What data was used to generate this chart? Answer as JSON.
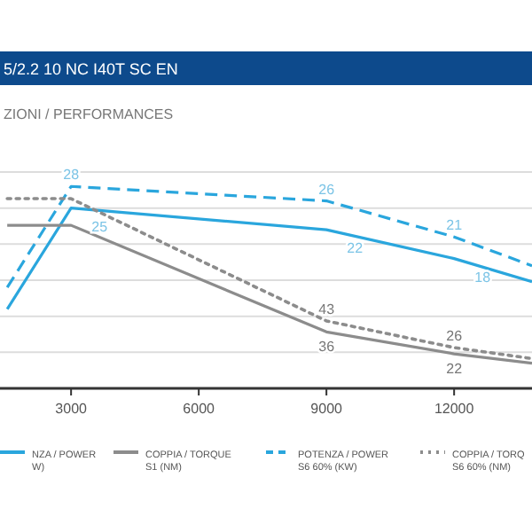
{
  "chart_data": {
    "type": "line",
    "title": "5/2.2 10 NC I40T SC EN",
    "subtitle": "ZIONI / PERFORMANCES",
    "x": [
      1500,
      3000,
      9000,
      12000,
      13830
    ],
    "xlim": [
      1330,
      13830
    ],
    "xticks": [
      3000,
      6000,
      9000,
      12000
    ],
    "ylim": [
      0,
      30
    ],
    "yticks": [
      {
        "value": 5,
        "label": null
      },
      {
        "value": 10,
        "label": null
      },
      {
        "value": 15,
        "label": null
      },
      {
        "value": 20,
        "label": null
      },
      {
        "value": 25,
        "label": null
      },
      {
        "value": 30,
        "label": null
      }
    ],
    "y2lim": [
      0,
      138
    ],
    "tick_labels": "x",
    "grid": "y",
    "legend": "bottom",
    "series": [
      {
        "name": "NZA / POWER\nW)",
        "color": "#2aa6dd",
        "line_style": "solid",
        "values": [
          11,
          25,
          22,
          18,
          14.8
        ],
        "value_labels": [
          null,
          "25",
          "22",
          "18",
          null
        ]
      },
      {
        "name": "COPPIA / TORQUE\nS1 (NM)",
        "color": "#8c8c8c",
        "line_style": "solid",
        "axis": "y2",
        "values": [
          104,
          104,
          36,
          22,
          16
        ],
        "value_labels": [
          null,
          null,
          "36",
          "22",
          null
        ]
      },
      {
        "name": "POTENZA / POWER\nS6 60% (KW)",
        "color": "#2aa6dd",
        "line_style": "dashed",
        "values": [
          14,
          28,
          26,
          21,
          17
        ],
        "value_labels": [
          null,
          "28",
          "26",
          "21",
          null
        ]
      },
      {
        "name": "COPPIA / TORQ\nS6 60% (NM)",
        "color": "#8c8c8c",
        "line_style": "dotted",
        "axis": "y2",
        "values": [
          121,
          121,
          43,
          26,
          19
        ],
        "value_labels": [
          null,
          null,
          "43",
          "26",
          null
        ]
      }
    ]
  }
}
